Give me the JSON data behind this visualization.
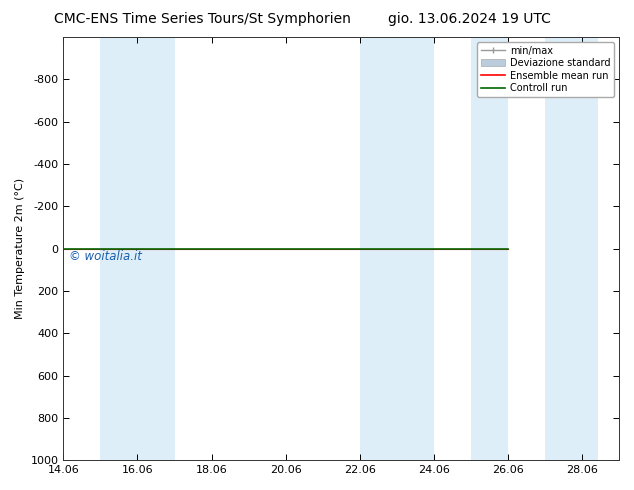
{
  "title_left": "CMC-ENS Time Series Tours/St Symphorien",
  "title_right": "gio. 13.06.2024 19 UTC",
  "ylabel": "Min Temperature 2m (°C)",
  "xlim": [
    14.06,
    29.06
  ],
  "ylim_top": -1000,
  "ylim_bottom": 1000,
  "yticks": [
    -800,
    -600,
    -400,
    -200,
    0,
    200,
    400,
    600,
    800,
    1000
  ],
  "xticks": [
    14.06,
    16.06,
    18.06,
    20.06,
    22.06,
    24.06,
    26.06,
    28.06
  ],
  "xticklabels": [
    "14.06",
    "16.06",
    "18.06",
    "20.06",
    "22.06",
    "24.06",
    "26.06",
    "28.06"
  ],
  "shaded_regions": [
    [
      15.06,
      16.06
    ],
    [
      15.5,
      17.06
    ],
    [
      22.06,
      23.06
    ],
    [
      23.06,
      24.06
    ],
    [
      25.06,
      26.06
    ],
    [
      27.06,
      28.5
    ]
  ],
  "control_run_y": 0.0,
  "ensemble_mean_y": 0.0,
  "watermark": "© woitalia.it",
  "watermark_color": "#1a5faa",
  "bg_color": "#ffffff",
  "shaded_color": "#ddeef8",
  "ensemble_mean_color": "#ff0000",
  "control_run_color": "#006600",
  "minmax_color": "#999999",
  "std_color": "#bbccdd",
  "legend_items": [
    "min/max",
    "Deviazione standard",
    "Ensemble mean run",
    "Controll run"
  ],
  "title_fontsize": 10,
  "tick_fontsize": 8,
  "ylabel_fontsize": 8
}
